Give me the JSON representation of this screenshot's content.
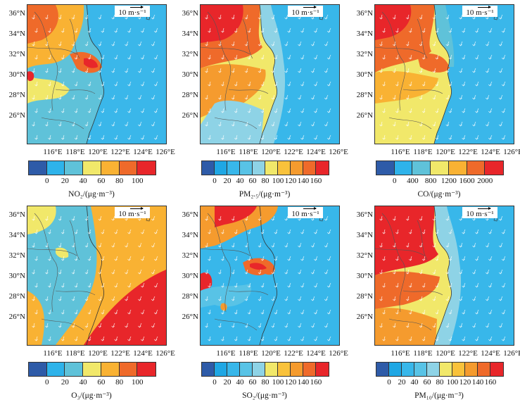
{
  "latitudes": [
    "36°N",
    "34°N",
    "32°N",
    "30°N",
    "28°N",
    "26°N"
  ],
  "longitudes": [
    "116°E",
    "118°E",
    "120°E",
    "122°E",
    "124°E",
    "126°E"
  ],
  "wind_label": "10 m·s⁻¹",
  "panels": [
    {
      "id": "no2",
      "unit_label": "NO₂/(μg·m⁻³)",
      "ticks": [
        "0",
        "20",
        "40",
        "60",
        "80",
        "100"
      ],
      "colors": [
        "#2e5ba8",
        "#2eb3ea",
        "#5fc2d9",
        "#f1e86a",
        "#f9b233",
        "#ef6a2a",
        "#e8262a"
      ],
      "pattern": "no2"
    },
    {
      "id": "pm25",
      "unit_label": "PM₂.₅/(μg·m⁻³)",
      "ticks": [
        "0",
        "20",
        "40",
        "60",
        "80",
        "100",
        "120",
        "140",
        "160"
      ],
      "colors": [
        "#2e5ba8",
        "#1fa7e4",
        "#38b7ea",
        "#58c3e6",
        "#8ed3e6",
        "#f1e86a",
        "#f9c23b",
        "#f59b2e",
        "#ef6a2a",
        "#e8262a"
      ],
      "pattern": "pm25"
    },
    {
      "id": "co",
      "unit_label": "CO/(μg·m⁻³)",
      "ticks": [
        "0",
        "400",
        "800",
        "1200",
        "1600",
        "2000"
      ],
      "colors": [
        "#2e5ba8",
        "#2eb3ea",
        "#5fc2d9",
        "#f1e86a",
        "#f9b233",
        "#ef6a2a",
        "#e8262a"
      ],
      "pattern": "co"
    },
    {
      "id": "o3",
      "unit_label": "O₃/(μg·m⁻³)",
      "ticks": [
        "0",
        "20",
        "40",
        "60",
        "80",
        "100"
      ],
      "colors": [
        "#2e5ba8",
        "#2eb3ea",
        "#5fc2d9",
        "#f1e86a",
        "#f9b233",
        "#ef6a2a",
        "#e8262a"
      ],
      "pattern": "o3"
    },
    {
      "id": "so2",
      "unit_label": "SO₂/(μg·m⁻³)",
      "ticks": [
        "0",
        "20",
        "40",
        "60",
        "80",
        "100",
        "120",
        "140",
        "160"
      ],
      "colors": [
        "#2e5ba8",
        "#1fa7e4",
        "#38b7ea",
        "#58c3e6",
        "#8ed3e6",
        "#f1e86a",
        "#f9c23b",
        "#f59b2e",
        "#ef6a2a",
        "#e8262a"
      ],
      "pattern": "so2"
    },
    {
      "id": "pm10",
      "unit_label": "PM₁₀/(μg·m⁻³)",
      "ticks": [
        "0",
        "20",
        "40",
        "60",
        "80",
        "100",
        "120",
        "140",
        "160"
      ],
      "colors": [
        "#2e5ba8",
        "#1fa7e4",
        "#38b7ea",
        "#58c3e6",
        "#8ed3e6",
        "#f1e86a",
        "#f9c23b",
        "#f59b2e",
        "#ef6a2a",
        "#e8262a"
      ],
      "pattern": "pm10"
    }
  ]
}
